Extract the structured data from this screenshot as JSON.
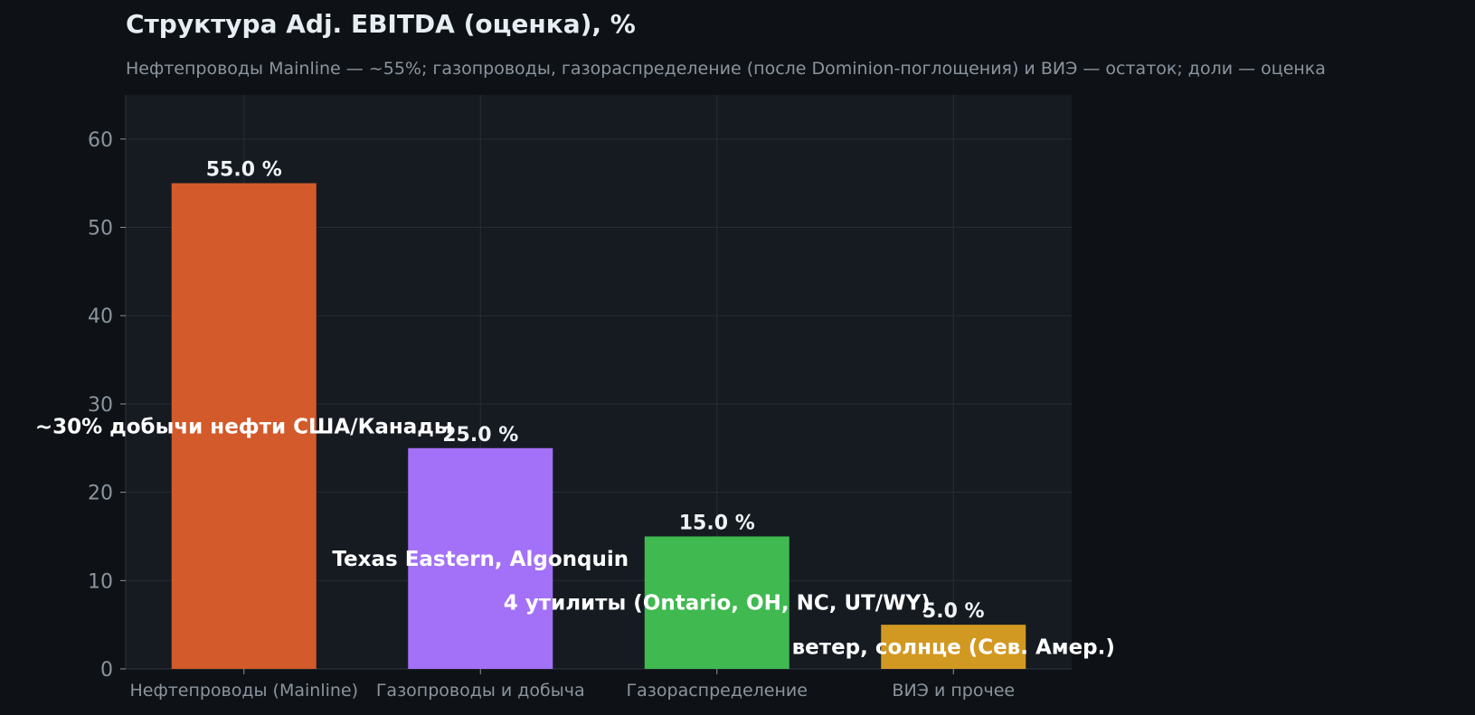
{
  "chart_data": {
    "type": "bar",
    "title": "Структура Adj. EBITDA (оценка), %",
    "subtitle": "Нефтепроводы Mainline — ~55%; газопроводы, газораспределение (после Dominion-поглощения) и ВИЭ — остаток; доли — оценка",
    "xlabel": "",
    "ylabel": "",
    "ylim": [
      0,
      65
    ],
    "yticks": [
      0,
      10,
      20,
      30,
      40,
      50,
      60
    ],
    "grid": true,
    "categories": [
      "Нефтепроводы (Mainline)",
      "Газопроводы и добыча",
      "Газораспределение",
      "ВИЭ и прочее"
    ],
    "values": [
      55.0,
      25.0,
      15.0,
      5.0
    ],
    "value_labels": [
      "55.0 %",
      "25.0 %",
      "15.0 %",
      "5.0 %"
    ],
    "annotations": [
      {
        "text": "~30% добычи нефти США/Канады",
        "y": 27.5
      },
      {
        "text": "Texas Eastern, Algonquin",
        "y": 12.5
      },
      {
        "text": "4 утилиты (Ontario, OH, NC, UT/WY)",
        "y": 7.5
      },
      {
        "text": "ветер, солнце (Сев. Амер.)",
        "y": 2.5
      }
    ],
    "colors": [
      "#d35a2a",
      "#a371f7",
      "#3fb950",
      "#d29922"
    ],
    "colors_extra": {
      "background": "#0e1216",
      "plot_background": "#161b22",
      "grid": "#262c35",
      "tick_text": "#8b949e",
      "label_text": "#f0f3f6"
    }
  }
}
